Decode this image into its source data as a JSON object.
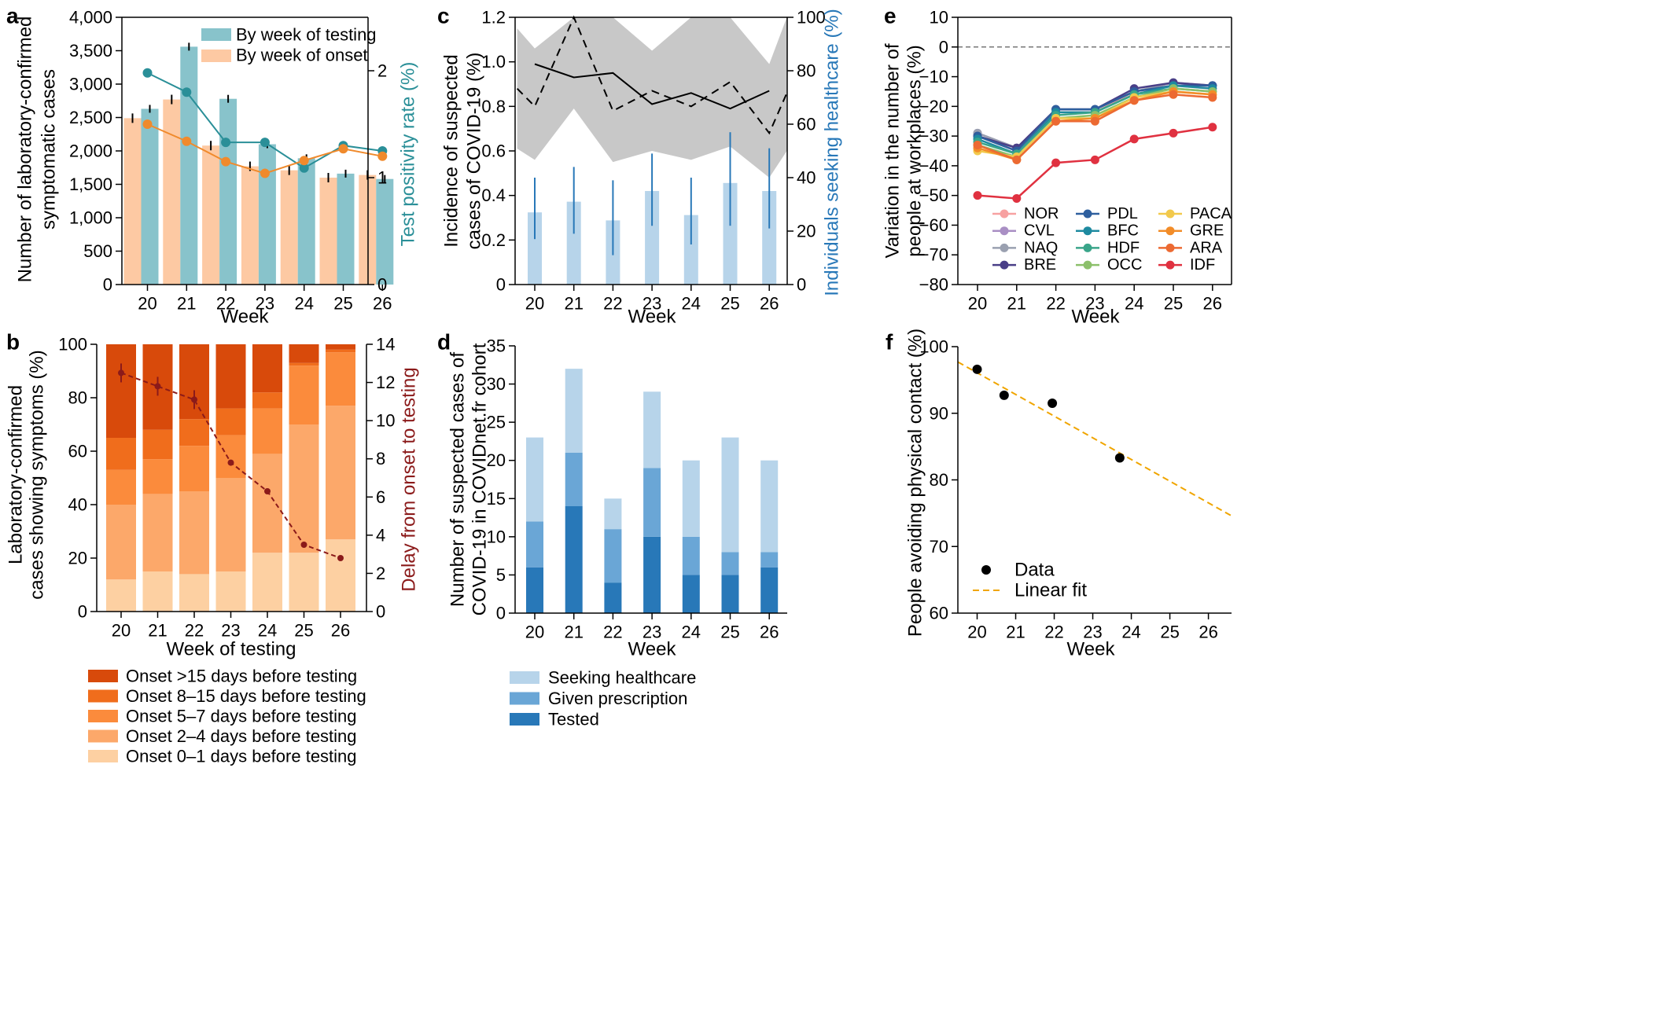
{
  "panels": {
    "a": "a",
    "b": "b",
    "c": "c",
    "d": "d",
    "e": "e",
    "f": "f"
  },
  "colors": {
    "teal": "#88c3cb",
    "teal_line": "#2a8f98",
    "peach": "#fdc9a3",
    "orange_line": "#f08a2c",
    "onset_gt15": "#d84a0b",
    "onset_8_15": "#f06d1c",
    "onset_5_7": "#fb8b3c",
    "onset_2_4": "#fca86a",
    "onset_0_1": "#fdd0a2",
    "dark_red": "#8b1a1a",
    "light_blue": "#b7d4ea",
    "mid_blue": "#6aa6d6",
    "dark_blue": "#2878b8",
    "grey_band": "#c8c8c8"
  },
  "chart_data": [
    {
      "panel": "a",
      "type": "bar",
      "categories": [
        "20",
        "21",
        "22",
        "23",
        "24",
        "25",
        "26"
      ],
      "xlabel": "Week",
      "ylabel": [
        "Number of laboratory-confirmed",
        "symptomatic cases"
      ],
      "ylabel_right": "Test positivity rate (%)",
      "ylim": [
        0,
        4000
      ],
      "yticks": [
        "0",
        "500",
        "1,000",
        "1,500",
        "2,000",
        "2,500",
        "3,000",
        "3,500",
        "4,000"
      ],
      "ylim_right": [
        0,
        2.5
      ],
      "yticks_right": [
        "0",
        "1",
        "2"
      ],
      "series": [
        {
          "name": "By week of testing",
          "values": [
            2630,
            3560,
            2780,
            2100,
            1890,
            1660,
            1580
          ]
        },
        {
          "name": "By week of onset",
          "values": [
            2490,
            2770,
            2080,
            1770,
            1710,
            1600,
            1640
          ]
        }
      ],
      "lines": [
        {
          "axis": "right",
          "values": [
            1.98,
            1.8,
            1.33,
            1.33,
            1.09,
            1.3,
            1.25
          ]
        },
        {
          "axis": "right",
          "values": [
            1.5,
            1.34,
            1.15,
            1.04,
            1.16,
            1.27,
            1.2
          ]
        }
      ]
    },
    {
      "panel": "b",
      "type": "bar",
      "stacked": true,
      "categories": [
        "20",
        "21",
        "22",
        "23",
        "24",
        "25",
        "26"
      ],
      "xlabel": "Week of testing",
      "ylabel": [
        "Laboratory-confirmed",
        "cases showing symptoms (%)"
      ],
      "ylabel_right": "Delay from onset to testing",
      "ylim": [
        0,
        100
      ],
      "yticks": [
        "0",
        "20",
        "40",
        "60",
        "80",
        "100"
      ],
      "ylim_right": [
        0,
        14
      ],
      "yticks_right": [
        "0",
        "2",
        "4",
        "6",
        "8",
        "10",
        "12",
        "14"
      ],
      "series": [
        {
          "name": "Onset 0–1 days before testing",
          "values": [
            12,
            15,
            14,
            15,
            22,
            22,
            27
          ]
        },
        {
          "name": "Onset 2–4 days before testing",
          "values": [
            28,
            29,
            31,
            35,
            37,
            48,
            50
          ]
        },
        {
          "name": "Onset 5–7 days before testing",
          "values": [
            13,
            13,
            17,
            16,
            17,
            22,
            20
          ]
        },
        {
          "name": "Onset 8–15 days before testing",
          "values": [
            12,
            11,
            10,
            10,
            6,
            1,
            1
          ]
        },
        {
          "name": "Onset >15 days before testing",
          "values": [
            35,
            32,
            28,
            24,
            18,
            7,
            2
          ]
        }
      ],
      "line": {
        "axis": "right",
        "values": [
          12.5,
          11.8,
          11.1,
          7.8,
          6.3,
          3.5,
          2.8
        ]
      }
    },
    {
      "panel": "c",
      "type": "line",
      "categories": [
        "20",
        "21",
        "22",
        "23",
        "24",
        "25",
        "26"
      ],
      "xlabel": "Week",
      "ylabel": [
        "Incidence of suspected",
        "cases of COVID-19 (%)"
      ],
      "ylabel_right": "Individuals seeking healthcare (%)",
      "ylim": [
        0,
        1.2
      ],
      "yticks": [
        "0",
        "0.2",
        "0.4",
        "0.6",
        "0.8",
        "1.0",
        "1.2"
      ],
      "ylim_right": [
        0,
        100
      ],
      "yticks_right": [
        "0",
        "20",
        "40",
        "60",
        "80",
        "100"
      ],
      "solid_line": [
        0.99,
        0.93,
        0.95,
        0.81,
        0.86,
        0.79,
        0.87
      ],
      "dashed_line": {
        "x": [
          19.55,
          20,
          21,
          22,
          23,
          24,
          25,
          26,
          26.45
        ],
        "values": [
          0.88,
          0.8,
          1.2,
          0.78,
          0.87,
          0.8,
          0.91,
          0.68,
          0.86
        ]
      },
      "band": {
        "x": [
          19.55,
          20,
          21,
          22,
          23,
          24,
          25,
          26,
          26.45
        ],
        "lower": [
          0.61,
          0.56,
          0.79,
          0.55,
          0.6,
          0.56,
          0.62,
          0.48,
          0.6
        ],
        "upper": [
          1.15,
          1.06,
          1.2,
          1.2,
          1.05,
          1.2,
          1.2,
          0.99,
          1.2
        ]
      },
      "bars": {
        "axis": "right",
        "values": [
          27,
          31,
          24,
          35,
          26,
          38,
          35
        ],
        "err_low": [
          17,
          19,
          11,
          22,
          15,
          22,
          21
        ],
        "err_high": [
          40,
          44,
          39,
          49,
          40,
          57,
          51
        ]
      }
    },
    {
      "panel": "d",
      "type": "bar",
      "stacked": true,
      "categories": [
        "20",
        "21",
        "22",
        "23",
        "24",
        "25",
        "26"
      ],
      "xlabel": "Week",
      "ylabel": [
        "Number of suspected cases of",
        "COVID-19 in COVIDnet.fr cohort"
      ],
      "ylim": [
        0,
        35
      ],
      "yticks": [
        "0",
        "5",
        "10",
        "15",
        "20",
        "25",
        "30",
        "35"
      ],
      "series": [
        {
          "name": "Tested",
          "values": [
            6,
            14,
            4,
            10,
            5,
            5,
            6
          ]
        },
        {
          "name": "Given prescription",
          "values": [
            6,
            7,
            7,
            9,
            5,
            3,
            2
          ]
        },
        {
          "name": "Seeking healthcare",
          "values": [
            11,
            11,
            4,
            10,
            10,
            15,
            12
          ]
        }
      ]
    },
    {
      "panel": "e",
      "type": "line",
      "categories": [
        "20",
        "21",
        "22",
        "23",
        "24",
        "25",
        "26"
      ],
      "xlabel": "Week",
      "ylabel": [
        "Variation in the number of",
        "people at workplaces (%)"
      ],
      "ylim": [
        -80,
        10
      ],
      "yticks": [
        "−80",
        "−70",
        "−60",
        "−50",
        "−40",
        "−30",
        "−20",
        "−10",
        "0",
        "10"
      ],
      "series": [
        {
          "name": "NOR",
          "color": "#f7a1a1",
          "values": [
            -30,
            -35,
            -22,
            -22,
            -15,
            -13,
            -14
          ]
        },
        {
          "name": "CVL",
          "color": "#a98fc4",
          "values": [
            -29,
            -34,
            -21,
            -21,
            -15,
            -13,
            -13
          ]
        },
        {
          "name": "NAQ",
          "color": "#9aa0b0",
          "values": [
            -29,
            -34,
            -21,
            -21,
            -15,
            -12,
            -13
          ]
        },
        {
          "name": "BRE",
          "color": "#4a3f88",
          "values": [
            -30,
            -34,
            -21,
            -21,
            -14,
            -12,
            -13
          ]
        },
        {
          "name": "PDL",
          "color": "#2e5f9e",
          "values": [
            -30,
            -35,
            -21,
            -21,
            -15,
            -13,
            -13
          ]
        },
        {
          "name": "BFC",
          "color": "#1e8aa0",
          "values": [
            -31,
            -36,
            -22,
            -22,
            -16,
            -13,
            -14
          ]
        },
        {
          "name": "HDF",
          "color": "#3aa58a",
          "values": [
            -32,
            -36,
            -23,
            -22,
            -16,
            -14,
            -15
          ]
        },
        {
          "name": "OCC",
          "color": "#8cc06b",
          "values": [
            -33,
            -37,
            -24,
            -23,
            -17,
            -14,
            -15
          ]
        },
        {
          "name": "PACA",
          "color": "#f2c94c",
          "values": [
            -35,
            -37,
            -24,
            -24,
            -17,
            -15,
            -16
          ]
        },
        {
          "name": "GRE",
          "color": "#f28c28",
          "values": [
            -34,
            -38,
            -25,
            -24,
            -18,
            -15,
            -16
          ]
        },
        {
          "name": "ARA",
          "color": "#ec6a32",
          "values": [
            -33,
            -38,
            -25,
            -25,
            -18,
            -16,
            -17
          ]
        },
        {
          "name": "IDF",
          "color": "#e03140",
          "values": [
            -50,
            -51,
            -39,
            -38,
            -31,
            -29,
            -27
          ]
        }
      ]
    },
    {
      "panel": "f",
      "type": "scatter",
      "categories": [
        "20",
        "21",
        "22",
        "23",
        "24",
        "25",
        "26"
      ],
      "xlabel": "Week",
      "ylabel": "People avoiding physical contact (%)",
      "ylim": [
        60,
        100
      ],
      "yticks": [
        "60",
        "70",
        "80",
        "90",
        "100"
      ],
      "xlim": [
        19.5,
        26.6
      ],
      "points": {
        "name": "Data",
        "x": [
          20,
          20.7,
          21.95,
          23.7
        ],
        "y": [
          96.6,
          92.7,
          91.5,
          83.3
        ]
      },
      "fit": {
        "name": "Linear fit",
        "x": [
          19.5,
          26.6
        ],
        "y": [
          97.7,
          74.6
        ]
      }
    }
  ]
}
